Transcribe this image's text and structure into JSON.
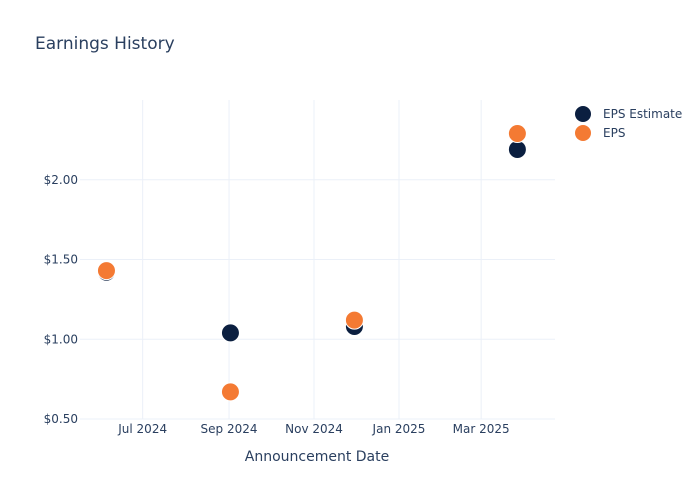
{
  "chart_data": {
    "type": "scatter",
    "title": "Earnings History",
    "xlabel": "Announcement Date",
    "ylabel": "",
    "x_ticks": [
      {
        "date": "2024-07-01",
        "label": "Jul 2024"
      },
      {
        "date": "2024-09-01",
        "label": "Sep 2024"
      },
      {
        "date": "2024-11-01",
        "label": "Nov 2024"
      },
      {
        "date": "2025-01-01",
        "label": "Jan 2025"
      },
      {
        "date": "2025-03-01",
        "label": "Mar 2025"
      }
    ],
    "y_ticks": [
      {
        "value": 0.5,
        "label": "$0.50"
      },
      {
        "value": 1.0,
        "label": "$1.00"
      },
      {
        "value": 1.5,
        "label": "$1.50"
      },
      {
        "value": 2.0,
        "label": "$2.00"
      }
    ],
    "xlim": [
      "2024-05-17",
      "2025-04-23"
    ],
    "ylim": [
      0.5,
      2.5
    ],
    "grid": true,
    "legend_position": "top-right",
    "series": [
      {
        "name": "EPS Estimate",
        "color": "#0b1f40",
        "points": [
          {
            "x": "2024-06-05",
            "y": 1.42
          },
          {
            "x": "2024-09-02",
            "y": 1.04
          },
          {
            "x": "2024-11-30",
            "y": 1.08
          },
          {
            "x": "2025-03-27",
            "y": 2.19
          }
        ]
      },
      {
        "name": "EPS",
        "color": "#f47a33",
        "points": [
          {
            "x": "2024-06-05",
            "y": 1.43
          },
          {
            "x": "2024-09-02",
            "y": 0.67
          },
          {
            "x": "2024-11-30",
            "y": 1.12
          },
          {
            "x": "2025-03-27",
            "y": 2.29
          }
        ]
      }
    ]
  }
}
